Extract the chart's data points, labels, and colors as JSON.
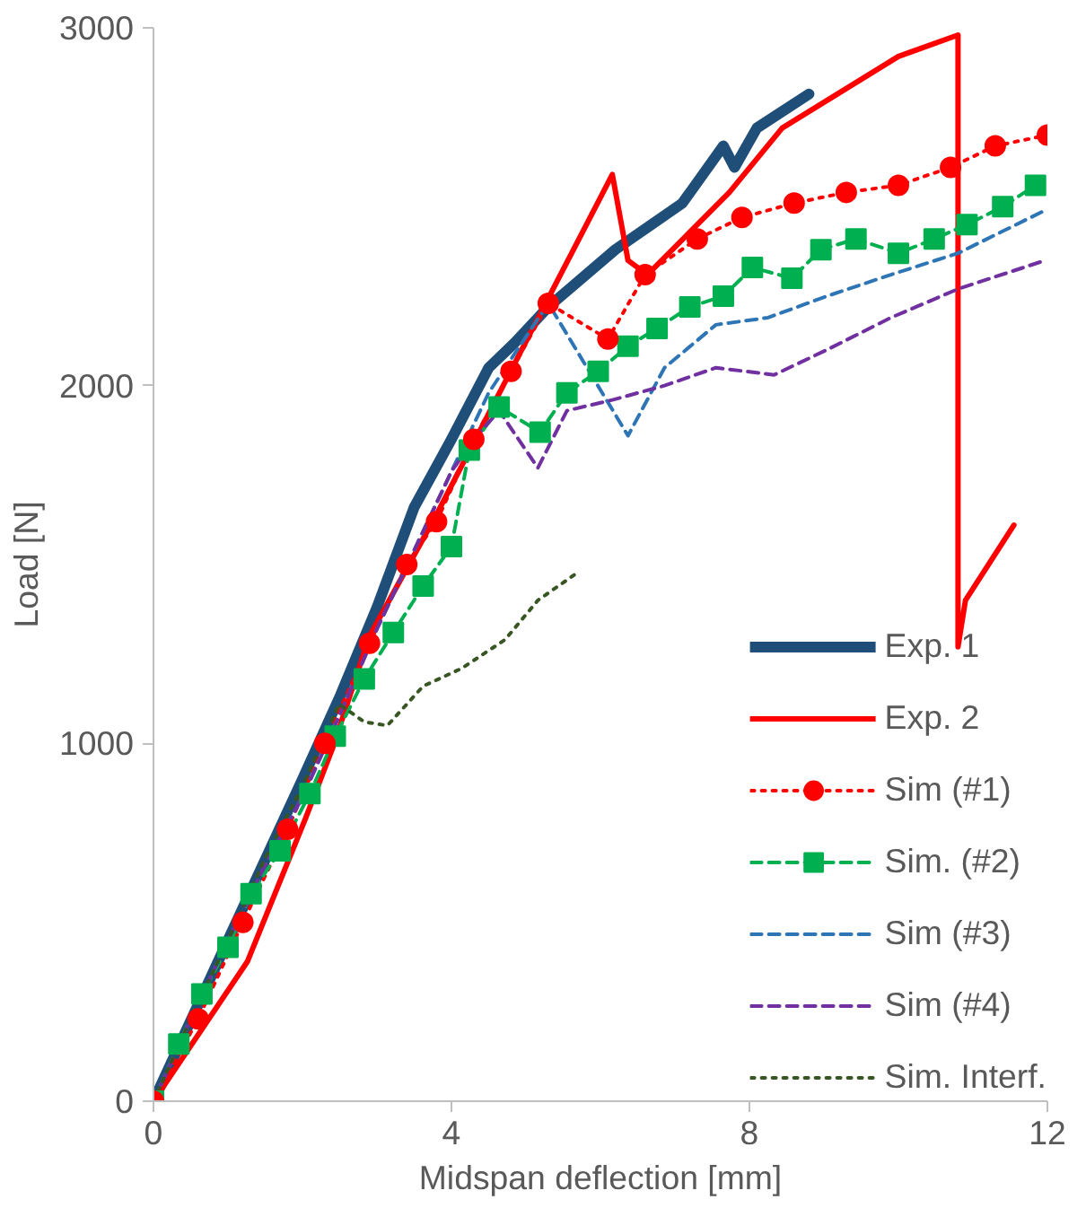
{
  "chart_data": {
    "type": "line",
    "xlabel": "Midspan deflection [mm]",
    "ylabel": "Load [N]",
    "xlim": [
      0,
      12
    ],
    "xticks": [
      0,
      4,
      8,
      12
    ],
    "ylim": [
      0,
      3000
    ],
    "yticks": [
      0,
      1000,
      2000,
      3000
    ],
    "grid": false,
    "legend": "bottom right",
    "series": [
      {
        "name": "Exp. 1",
        "color": "#1f4e79",
        "line_style": "solid",
        "marker": "none",
        "x": [
          0,
          1,
          2,
          2.5,
          3,
          3.5,
          4,
          4.5,
          4.85,
          5.3,
          6.2,
          7.1,
          7.65,
          7.8,
          8.1,
          8.8
        ],
        "values": [
          0,
          450,
          900,
          1130,
          1380,
          1660,
          1850,
          2050,
          2120,
          2220,
          2380,
          2510,
          2670,
          2610,
          2720,
          2815
        ]
      },
      {
        "name": "Exp. 2",
        "color": "#ff0000",
        "line_style": "solid",
        "marker": "none",
        "x": [
          0,
          1.26,
          2.04,
          2.41,
          2.9,
          3.8,
          4.77,
          5.29,
          6.16,
          6.37,
          6.63,
          7.73,
          8.44,
          10.0,
          10.8,
          10.8,
          10.9,
          11.55
        ],
        "values": [
          0,
          390,
          790,
          990,
          1300,
          1640,
          2030,
          2240,
          2590,
          2350,
          2310,
          2540,
          2720,
          2920,
          2980,
          1270,
          1400,
          1610
        ]
      },
      {
        "name": "Sim (#1)",
        "color": "#ff0000",
        "line_style": "dotted",
        "marker": "circle",
        "x": [
          0,
          0.6,
          1.2,
          1.8,
          2.3,
          2.9,
          3.4,
          3.8,
          4.3,
          4.8,
          5.3,
          6.1,
          6.6,
          7.3,
          7.9,
          8.6,
          9.3,
          10,
          10.7,
          11.3,
          12
        ],
        "values": [
          0,
          230,
          500,
          760,
          1000,
          1280,
          1500,
          1620,
          1850,
          2040,
          2230,
          2130,
          2310,
          2410,
          2470,
          2510,
          2540,
          2560,
          2610,
          2670,
          2700
        ]
      },
      {
        "name": "Sim. (#2)",
        "color": "#00b050",
        "line_style": "dashed",
        "marker": "square",
        "x": [
          0,
          0.34,
          0.65,
          1.0,
          1.31,
          1.7,
          2.1,
          2.44,
          2.83,
          3.22,
          3.62,
          4.0,
          4.24,
          4.64,
          5.19,
          5.55,
          5.97,
          6.37,
          6.76,
          7.2,
          7.65,
          8.04,
          8.57,
          8.96,
          9.43,
          10.0,
          10.48,
          10.92,
          11.4,
          11.84
        ],
        "values": [
          0,
          160,
          300,
          430,
          580,
          700,
          860,
          1020,
          1180,
          1310,
          1440,
          1550,
          1820,
          1940,
          1870,
          1980,
          2040,
          2110,
          2160,
          2220,
          2250,
          2330,
          2300,
          2380,
          2410,
          2370,
          2410,
          2450,
          2500,
          2560
        ]
      },
      {
        "name": "Sim (#3)",
        "color": "#2e75b6",
        "line_style": "dashed",
        "marker": "none",
        "x": [
          0,
          0.5,
          1,
          1.5,
          2,
          2.5,
          3,
          3.5,
          4,
          4.5,
          5.3,
          6.37,
          6.86,
          7.55,
          8.25,
          9.04,
          9.9,
          10.8,
          11.97
        ],
        "values": [
          0,
          230,
          450,
          660,
          850,
          1080,
          1320,
          1540,
          1760,
          1980,
          2230,
          1860,
          2050,
          2170,
          2190,
          2250,
          2310,
          2370,
          2490
        ]
      },
      {
        "name": "Sim (#4)",
        "color": "#7030a0",
        "line_style": "dashed",
        "marker": "none",
        "x": [
          0,
          0.5,
          1,
          1.5,
          2,
          2.5,
          3,
          3.5,
          4,
          4.3,
          4.64,
          5.16,
          5.55,
          6.16,
          6.86,
          7.55,
          8.33,
          9.04,
          9.9,
          10.8,
          11.97
        ],
        "values": [
          0,
          230,
          450,
          660,
          850,
          1080,
          1320,
          1540,
          1760,
          1850,
          1930,
          1770,
          1930,
          1960,
          2000,
          2050,
          2030,
          2100,
          2190,
          2270,
          2350
        ]
      },
      {
        "name": "Sim. Interf.",
        "color": "#375623",
        "line_style": "dotted",
        "marker": "none",
        "x": [
          0,
          0.5,
          1,
          1.5,
          2,
          2.49,
          2.83,
          3.14,
          3.62,
          4.14,
          4.72,
          5.16,
          5.71
        ],
        "values": [
          0,
          230,
          450,
          680,
          880,
          1110,
          1060,
          1050,
          1160,
          1210,
          1290,
          1400,
          1480
        ]
      }
    ]
  }
}
